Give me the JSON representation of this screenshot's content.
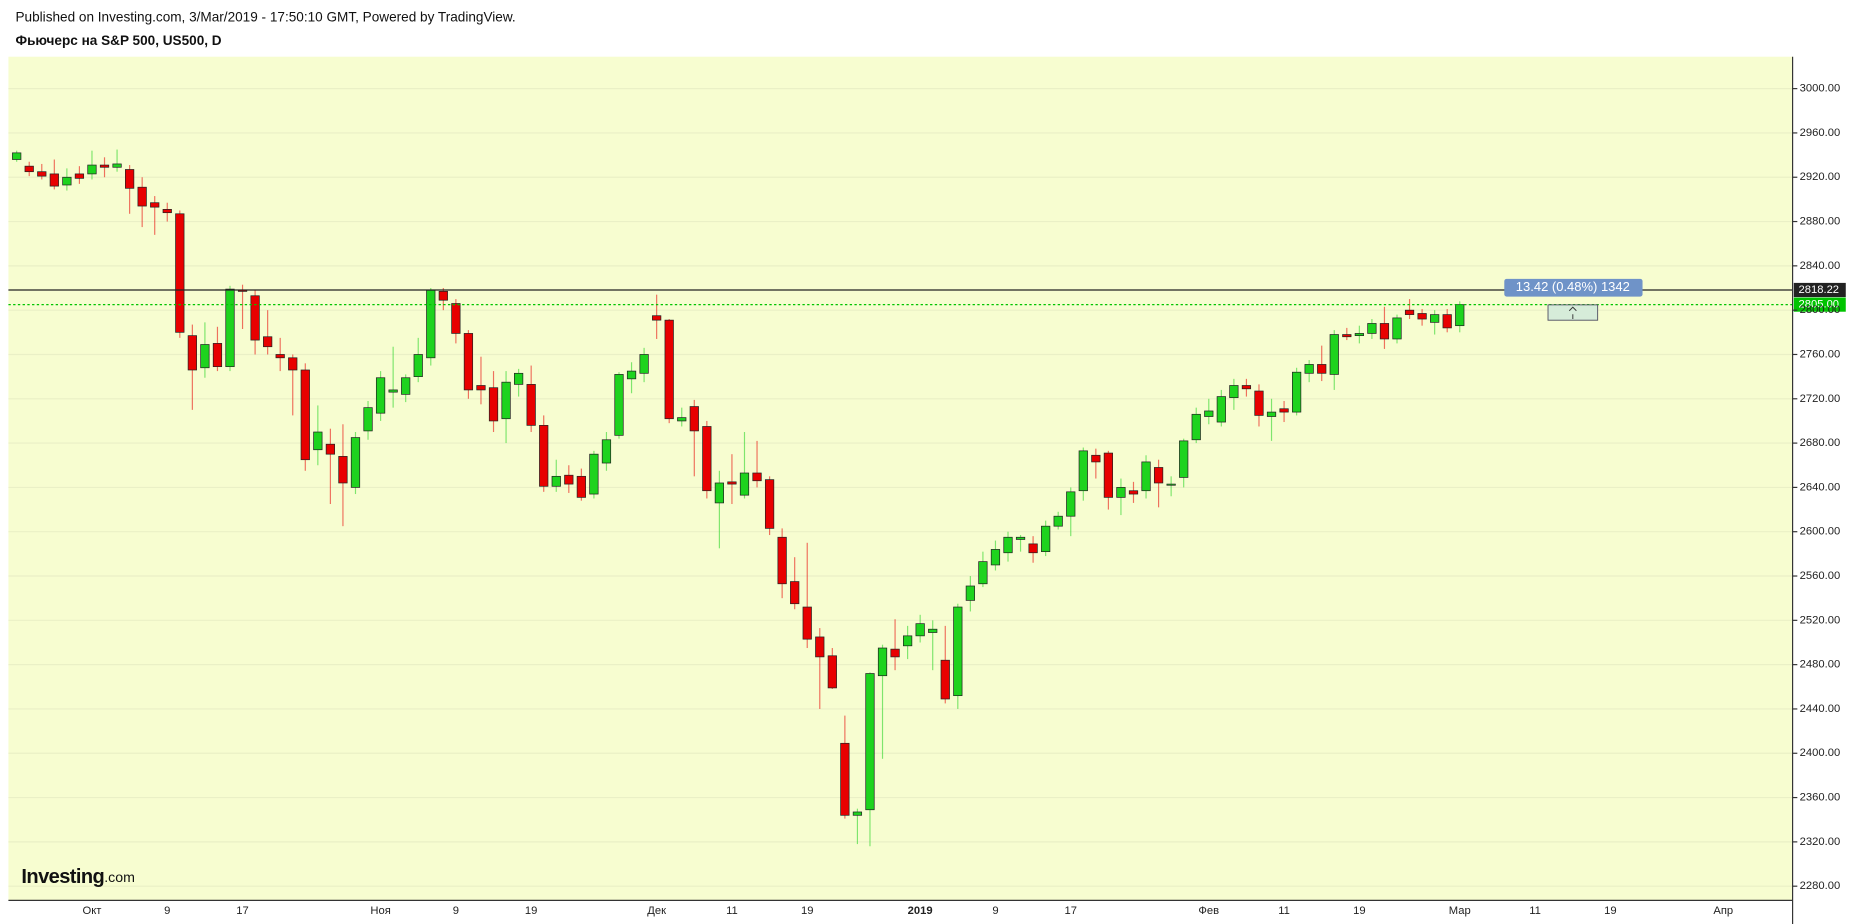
{
  "chart_data": {
    "type": "candlestick",
    "subtitle": "Published on Investing.com, 3/Mar/2019 - 17:50:10 GMT, Powered by TradingView.",
    "title": "Фьючерс на S&P 500, US500, D",
    "categories": [
      null,
      null,
      null,
      null,
      null,
      null,
      "Окт",
      null,
      null,
      null,
      null,
      null,
      "9",
      null,
      null,
      null,
      null,
      null,
      "17",
      null,
      null,
      null,
      null,
      null,
      null,
      null,
      null,
      null,
      null,
      "Ноя",
      null,
      null,
      null,
      null,
      null,
      "9",
      null,
      null,
      null,
      null,
      null,
      "19",
      null,
      null,
      null,
      null,
      null,
      null,
      null,
      null,
      null,
      "Дек",
      null,
      null,
      null,
      null,
      null,
      "11",
      null,
      null,
      null,
      null,
      null,
      "19",
      null,
      null,
      null,
      null,
      null,
      null,
      null,
      null,
      "2019",
      null,
      null,
      null,
      null,
      null,
      "9",
      null,
      null,
      null,
      null,
      null,
      "17",
      null,
      null,
      null,
      null,
      null,
      null,
      null,
      null,
      null,
      null,
      "Фев",
      null,
      null,
      null,
      null,
      null,
      "11",
      null,
      null,
      null,
      null,
      null,
      "19",
      null,
      null,
      null,
      null,
      null,
      null,
      null,
      "Мар",
      null,
      null,
      null,
      null,
      null,
      "11",
      null,
      null,
      null,
      null,
      null,
      "19",
      null,
      null,
      null,
      null,
      null,
      null,
      null,
      null,
      "Апр"
    ],
    "open": [
      2936,
      2930,
      2925,
      2923,
      2913,
      2923,
      2923,
      2931,
      2929,
      2927,
      2911,
      2897,
      2891,
      2887,
      2777,
      2748,
      2770,
      2749,
      2818,
      2813,
      2776,
      2760,
      2757,
      2746,
      2674,
      2679,
      2668,
      2640,
      2691,
      2707,
      2726,
      2724,
      2740,
      2757,
      2817,
      2806,
      2779,
      2732,
      2730,
      2702,
      2733,
      2733,
      2696,
      2641,
      2651,
      2650,
      2634,
      2662,
      2687,
      2738,
      2743,
      2795,
      2791,
      2700,
      2713,
      2695,
      2626,
      2645,
      2633,
      2653,
      2647,
      2595,
      2555,
      2532,
      2505,
      2488,
      2409,
      2344,
      2349,
      2470,
      2494,
      2497,
      2506,
      2509,
      2484,
      2452,
      2538,
      2553,
      2570,
      2581,
      2593,
      2589,
      2582,
      2605,
      2614,
      2637,
      2669,
      2671,
      2631,
      2637,
      2637,
      2658,
      2642,
      2649,
      2683,
      2704,
      2699,
      2721,
      2732,
      2727,
      2704,
      2711,
      2708,
      2743,
      2751,
      2742,
      2778,
      2777,
      2779,
      2788,
      2774,
      2800,
      2797,
      2789,
      2796,
      2786,
      null,
      null,
      null,
      null,
      null,
      null,
      null,
      null,
      null,
      null,
      null,
      null,
      null,
      null,
      null,
      null,
      null,
      null,
      null,
      null,
      null
    ],
    "high": [
      2944,
      2934,
      2932,
      2936,
      2928,
      2930,
      2944,
      2938,
      2945,
      2931,
      2920,
      2903,
      2897,
      2890,
      2787,
      2789,
      2785,
      2822,
      2823,
      2818,
      2800,
      2775,
      2760,
      2752,
      2714,
      2693,
      2697,
      2690,
      2718,
      2745,
      2767,
      2742,
      2775,
      2820,
      2820,
      2810,
      2782,
      2758,
      2745,
      2745,
      2747,
      2750,
      2705,
      2665,
      2660,
      2657,
      2673,
      2690,
      2744,
      2753,
      2766,
      2814,
      2792,
      2712,
      2719,
      2700,
      2655,
      2670,
      2690,
      2682,
      2650,
      2603,
      2577,
      2590,
      2513,
      2495,
      2434,
      2350,
      2473,
      2498,
      2521,
      2515,
      2525,
      2520,
      2515,
      2535,
      2560,
      2582,
      2592,
      2600,
      2597,
      2596,
      2610,
      2618,
      2640,
      2676,
      2675,
      2673,
      2648,
      2645,
      2669,
      2665,
      2650,
      2684,
      2712,
      2720,
      2728,
      2738,
      2738,
      2733,
      2720,
      2718,
      2748,
      2755,
      2768,
      2782,
      2784,
      2786,
      2792,
      2803,
      2796,
      2810,
      2801,
      2800,
      2801,
      2808,
      null,
      null,
      null,
      null,
      null,
      null,
      null,
      null,
      null,
      null,
      null,
      null,
      null,
      null,
      null,
      null,
      null,
      null,
      null,
      null,
      null
    ],
    "low": [
      2934,
      2921,
      2918,
      2909,
      2908,
      2914,
      2918,
      2920,
      2925,
      2887,
      2875,
      2868,
      2880,
      2775,
      2710,
      2739,
      2745,
      2745,
      2783,
      2760,
      2760,
      2745,
      2705,
      2655,
      2660,
      2625,
      2605,
      2634,
      2683,
      2700,
      2712,
      2717,
      2735,
      2750,
      2800,
      2770,
      2720,
      2715,
      2690,
      2680,
      2722,
      2690,
      2636,
      2636,
      2635,
      2628,
      2630,
      2655,
      2684,
      2725,
      2735,
      2774,
      2698,
      2695,
      2650,
      2630,
      2585,
      2625,
      2630,
      2640,
      2597,
      2540,
      2530,
      2495,
      2440,
      2458,
      2341,
      2318,
      2316,
      2395,
      2475,
      2485,
      2500,
      2475,
      2445,
      2440,
      2528,
      2550,
      2565,
      2573,
      2582,
      2572,
      2578,
      2602,
      2596,
      2628,
      2648,
      2620,
      2615,
      2626,
      2630,
      2622,
      2632,
      2640,
      2680,
      2697,
      2695,
      2710,
      2722,
      2695,
      2682,
      2699,
      2705,
      2735,
      2736,
      2728,
      2773,
      2770,
      2774,
      2765,
      2770,
      2792,
      2786,
      2778,
      2780,
      2780,
      null,
      null,
      null,
      null,
      null,
      null,
      null,
      null,
      null,
      null,
      null,
      null,
      null,
      null,
      null,
      null,
      null,
      null,
      null,
      null,
      null
    ],
    "close": [
      2942,
      2925,
      2921,
      2912,
      2920,
      2919,
      2931,
      2929,
      2932,
      2910,
      2894,
      2893,
      2888,
      2780,
      2746,
      2769,
      2749,
      2819,
      2817,
      2773,
      2767,
      2757,
      2746,
      2665,
      2690,
      2670,
      2644,
      2685,
      2712,
      2739,
      2728,
      2739,
      2760,
      2818,
      2809,
      2779,
      2728,
      2728,
      2700,
      2735,
      2743,
      2696,
      2641,
      2650,
      2643,
      2631,
      2670,
      2683,
      2742,
      2745,
      2760,
      2791,
      2702,
      2703,
      2691,
      2637,
      2644,
      2643,
      2653,
      2646,
      2603,
      2553,
      2535,
      2503,
      2487,
      2459,
      2344,
      2347,
      2472,
      2495,
      2487,
      2506,
      2517,
      2512,
      2449,
      2532,
      2551,
      2573,
      2584,
      2595,
      2595,
      2581,
      2605,
      2614,
      2636,
      2673,
      2663,
      2631,
      2640,
      2634,
      2663,
      2644,
      2643,
      2682,
      2706,
      2709,
      2722,
      2732,
      2729,
      2705,
      2708,
      2708,
      2744,
      2751,
      2743,
      2778,
      2776,
      2779,
      2788,
      2774,
      2793,
      2796,
      2792,
      2796,
      2784,
      2805,
      null,
      null,
      null,
      null,
      null,
      null,
      null,
      null,
      null,
      null,
      null,
      null,
      null,
      null,
      null,
      null,
      null,
      null,
      null,
      null,
      null
    ],
    "up_color": "#1ed31e",
    "down_color": "#e80000",
    "ylim": [
      2267.2,
      3028.8
    ],
    "yticks": [
      {
        "value": 2280,
        "label": "2280.00"
      },
      {
        "value": 2320,
        "label": "2320.00"
      },
      {
        "value": 2360,
        "label": "2360.00"
      },
      {
        "value": 2400,
        "label": "2400.00"
      },
      {
        "value": 2440,
        "label": "2440.00"
      },
      {
        "value": 2480,
        "label": "2480.00"
      },
      {
        "value": 2520,
        "label": "2520.00"
      },
      {
        "value": 2560,
        "label": "2560.00"
      },
      {
        "value": 2600,
        "label": "2600.00"
      },
      {
        "value": 2640,
        "label": "2640.00"
      },
      {
        "value": 2680,
        "label": "2680.00"
      },
      {
        "value": 2720,
        "label": "2720.00"
      },
      {
        "value": 2760,
        "label": "2760.00"
      },
      {
        "value": 2800,
        "label": "2800.00"
      },
      {
        "value": 2840,
        "label": "2840.00"
      },
      {
        "value": 2880,
        "label": "2880.00"
      },
      {
        "value": 2920,
        "label": "2920.00"
      },
      {
        "value": 2960,
        "label": "2960.00"
      },
      {
        "value": 3000,
        "label": "3000.00"
      }
    ],
    "grid": true,
    "hlines": [
      {
        "value": 2818.22,
        "color": "#222222"
      },
      {
        "value": 2805,
        "label": "2805.00",
        "color": "#00c400",
        "style": "dotted"
      }
    ],
    "annotation": "13.42 (0.48%) 1342",
    "logo": {
      "brand": "Investing",
      "suffix": ".com"
    }
  }
}
